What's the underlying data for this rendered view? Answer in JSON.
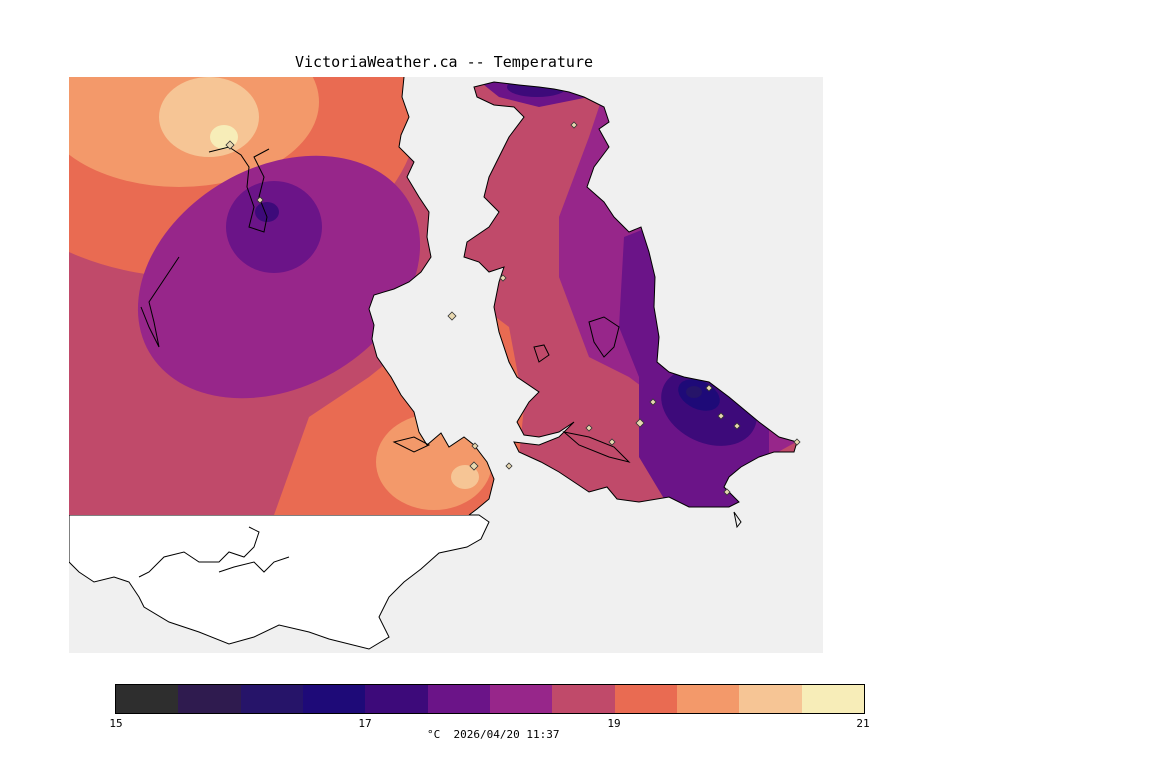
{
  "title": "VictoriaWeather.ca -- Temperature",
  "legend": {
    "unit": "°C",
    "timestamp": "2026/04/20 11:37",
    "min": 15,
    "max": 21,
    "ticks": [
      "15",
      "17",
      "19",
      "21"
    ],
    "colors": [
      "#2e2e2e",
      "#2f1b4f",
      "#261469",
      "#1e0a78",
      "#3d0a7a",
      "#6b1488",
      "#97268a",
      "#c04a6a",
      "#e96b52",
      "#f3996a",
      "#f6c595",
      "#f7edb8"
    ]
  },
  "colors": {
    "water": "#f0f0f0",
    "land_no_data": "#ffffff",
    "coastline": "#000000",
    "station_marker": "#e8d8b0"
  }
}
